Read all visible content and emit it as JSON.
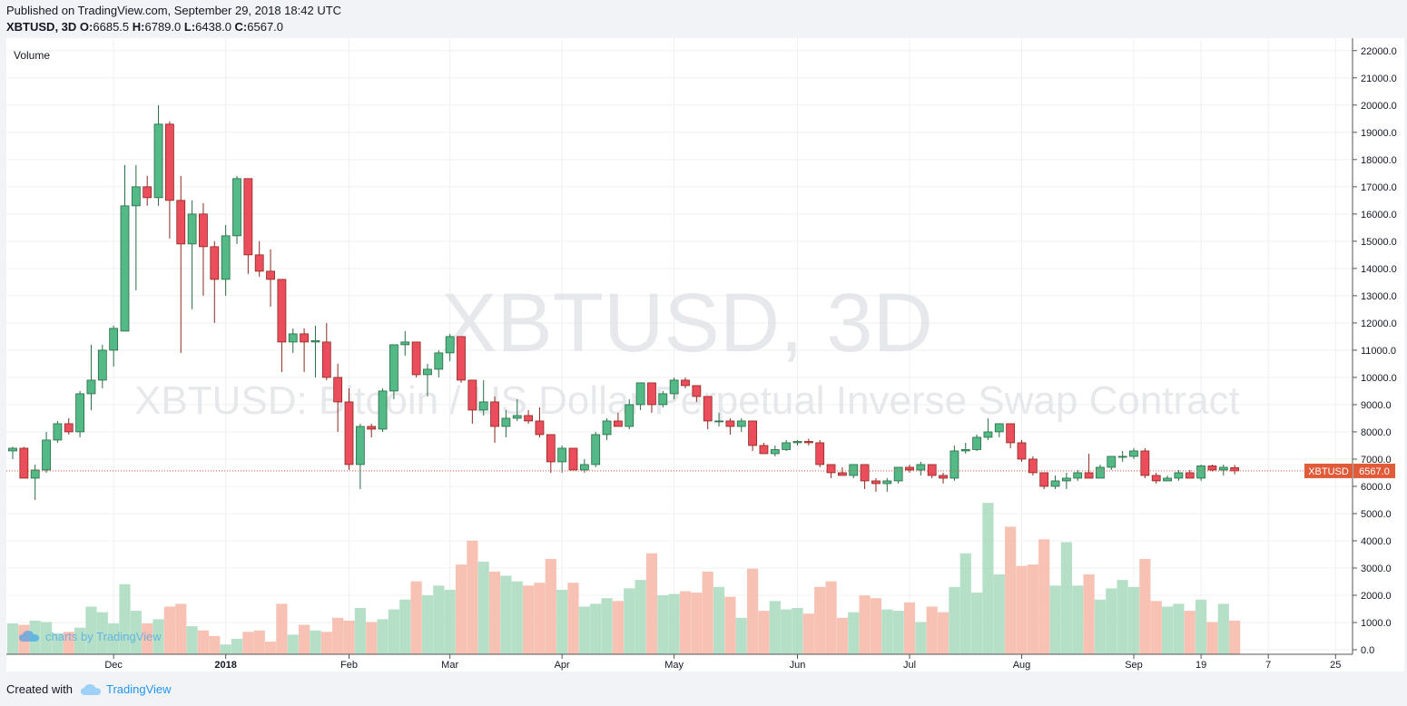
{
  "header": {
    "published": "Published on TradingView.com, September 29, 2018 18:42 UTC",
    "symbol": "XBTUSD, 3D",
    "ohlc": {
      "o_label": "O:",
      "o": "6685.5",
      "h_label": "H:",
      "h": "6789.0",
      "l_label": "L:",
      "l": "6438.0",
      "c_label": "C:",
      "c": "6567.0"
    }
  },
  "footer": {
    "created_with": "Created with",
    "brand": "TradingView"
  },
  "colors": {
    "up": "#53b987",
    "down": "#eb4d5c",
    "up_volume": "#a8d9bd",
    "down_volume": "#f6b7a6",
    "grid": "#eef0f3",
    "last_price": "#e05b3a"
  },
  "chart_data": {
    "type": "candlestick",
    "symbol": "XBTUSD",
    "timeframe": "3D",
    "watermark_symbol": "XBTUSD, 3D",
    "watermark_description": "XBTUSD: Bitcoin / US Dollar Perpetual Inverse Swap Contract",
    "pane_label": "Volume",
    "watermark_brand": "charts by TradingView",
    "last_price": 6567.0,
    "last_price_label": "XBTUSD",
    "last_price_text": "6567.0",
    "ylim": [
      0,
      22300
    ],
    "yticks": [
      0,
      1000,
      2000,
      3000,
      4000,
      5000,
      6000,
      7000,
      8000,
      9000,
      10000,
      11000,
      12000,
      13000,
      14000,
      15000,
      16000,
      17000,
      18000,
      19000,
      20000,
      21000,
      22000
    ],
    "ytick_labels": [
      "0.0",
      "1000.0",
      "2000.0",
      "3000.0",
      "4000.0",
      "5000.0",
      "6000.0",
      "7000.0",
      "8000.0",
      "9000.0",
      "10000.0",
      "11000.0",
      "12000.0",
      "13000.0",
      "14000.0",
      "15000.0",
      "16000.0",
      "17000.0",
      "18000.0",
      "19000.0",
      "20000.0",
      "21000.0",
      "22000.0"
    ],
    "xticks": [
      {
        "label": "Dec",
        "i": 9,
        "bold": false
      },
      {
        "label": "2018",
        "i": 19,
        "bold": true
      },
      {
        "label": "Feb",
        "i": 30,
        "bold": false
      },
      {
        "label": "Mar",
        "i": 39,
        "bold": false
      },
      {
        "label": "Apr",
        "i": 49,
        "bold": false
      },
      {
        "label": "May",
        "i": 59,
        "bold": false
      },
      {
        "label": "Jun",
        "i": 70,
        "bold": false
      },
      {
        "label": "Jul",
        "i": 80,
        "bold": false
      },
      {
        "label": "Aug",
        "i": 90,
        "bold": false
      },
      {
        "label": "Sep",
        "i": 100,
        "bold": false
      },
      {
        "label": "19",
        "i": 106,
        "bold": false
      },
      {
        "label": "7",
        "i": 112,
        "bold": false
      },
      {
        "label": "25",
        "i": 118,
        "bold": false
      }
    ],
    "volume_unit_label": "",
    "candles": [
      {
        "o": 7300,
        "h": 7450,
        "l": 7000,
        "c": 7400,
        "v": 1100
      },
      {
        "o": 7400,
        "h": 7450,
        "l": 6300,
        "c": 6300,
        "v": 1050
      },
      {
        "o": 6300,
        "h": 6800,
        "l": 5500,
        "c": 6600,
        "v": 1200
      },
      {
        "o": 6600,
        "h": 8000,
        "l": 6500,
        "c": 7700,
        "v": 1150
      },
      {
        "o": 7700,
        "h": 8400,
        "l": 7600,
        "c": 8300,
        "v": 750
      },
      {
        "o": 8300,
        "h": 8500,
        "l": 7900,
        "c": 8000,
        "v": 800
      },
      {
        "o": 8000,
        "h": 9500,
        "l": 7800,
        "c": 9400,
        "v": 950
      },
      {
        "o": 9400,
        "h": 11200,
        "l": 8800,
        "c": 9900,
        "v": 1700
      },
      {
        "o": 9900,
        "h": 11200,
        "l": 9600,
        "c": 11000,
        "v": 1500
      },
      {
        "o": 11000,
        "h": 11900,
        "l": 10400,
        "c": 11800,
        "v": 1100
      },
      {
        "o": 11700,
        "h": 17800,
        "l": 11700,
        "c": 16300,
        "v": 2500
      },
      {
        "o": 16300,
        "h": 17800,
        "l": 13200,
        "c": 17000,
        "v": 1550
      },
      {
        "o": 17000,
        "h": 17400,
        "l": 16300,
        "c": 16600,
        "v": 1100
      },
      {
        "o": 16600,
        "h": 20000,
        "l": 16300,
        "c": 19300,
        "v": 1250
      },
      {
        "o": 19300,
        "h": 19400,
        "l": 15100,
        "c": 16500,
        "v": 1700
      },
      {
        "o": 16500,
        "h": 17400,
        "l": 10900,
        "c": 14900,
        "v": 1800
      },
      {
        "o": 14900,
        "h": 16500,
        "l": 12500,
        "c": 16000,
        "v": 1000
      },
      {
        "o": 16000,
        "h": 16400,
        "l": 13000,
        "c": 14800,
        "v": 850
      },
      {
        "o": 14800,
        "h": 15000,
        "l": 12000,
        "c": 13600,
        "v": 650
      },
      {
        "o": 13600,
        "h": 15600,
        "l": 13000,
        "c": 15200,
        "v": 350
      },
      {
        "o": 15200,
        "h": 17400,
        "l": 14900,
        "c": 17300,
        "v": 550
      },
      {
        "o": 17300,
        "h": 17300,
        "l": 13800,
        "c": 14500,
        "v": 800
      },
      {
        "o": 14500,
        "h": 15000,
        "l": 13700,
        "c": 13900,
        "v": 850
      },
      {
        "o": 13900,
        "h": 14700,
        "l": 12600,
        "c": 13600,
        "v": 450
      },
      {
        "o": 13600,
        "h": 13600,
        "l": 10200,
        "c": 11300,
        "v": 1800
      },
      {
        "o": 11300,
        "h": 11800,
        "l": 10900,
        "c": 11600,
        "v": 700
      },
      {
        "o": 11600,
        "h": 11800,
        "l": 10200,
        "c": 11300,
        "v": 1050
      },
      {
        "o": 11300,
        "h": 11900,
        "l": 10000,
        "c": 11350,
        "v": 850
      },
      {
        "o": 11300,
        "h": 12000,
        "l": 9900,
        "c": 10000,
        "v": 800
      },
      {
        "o": 10000,
        "h": 10500,
        "l": 8000,
        "c": 9100,
        "v": 1300
      },
      {
        "o": 9100,
        "h": 9600,
        "l": 6600,
        "c": 6800,
        "v": 1200
      },
      {
        "o": 6800,
        "h": 8300,
        "l": 5900,
        "c": 8200,
        "v": 1650
      },
      {
        "o": 8200,
        "h": 8300,
        "l": 7800,
        "c": 8100,
        "v": 1150
      },
      {
        "o": 8100,
        "h": 9600,
        "l": 8000,
        "c": 9500,
        "v": 1250
      },
      {
        "o": 9500,
        "h": 11200,
        "l": 9200,
        "c": 11200,
        "v": 1600
      },
      {
        "o": 11200,
        "h": 11700,
        "l": 10800,
        "c": 11300,
        "v": 1950
      },
      {
        "o": 11300,
        "h": 11300,
        "l": 10000,
        "c": 10100,
        "v": 2600
      },
      {
        "o": 10100,
        "h": 10500,
        "l": 9300,
        "c": 10300,
        "v": 2100
      },
      {
        "o": 10300,
        "h": 11000,
        "l": 10000,
        "c": 10900,
        "v": 2450
      },
      {
        "o": 10900,
        "h": 11600,
        "l": 10600,
        "c": 11500,
        "v": 2300
      },
      {
        "o": 11500,
        "h": 11500,
        "l": 9800,
        "c": 9900,
        "v": 3200
      },
      {
        "o": 9900,
        "h": 9900,
        "l": 8300,
        "c": 8800,
        "v": 4050
      },
      {
        "o": 8800,
        "h": 9900,
        "l": 8600,
        "c": 9100,
        "v": 3300
      },
      {
        "o": 9100,
        "h": 9300,
        "l": 7600,
        "c": 8200,
        "v": 2950
      },
      {
        "o": 8200,
        "h": 8800,
        "l": 7800,
        "c": 8500,
        "v": 2800
      },
      {
        "o": 8500,
        "h": 9200,
        "l": 8400,
        "c": 8600,
        "v": 2600
      },
      {
        "o": 8600,
        "h": 8800,
        "l": 8300,
        "c": 8400,
        "v": 2450
      },
      {
        "o": 8400,
        "h": 8900,
        "l": 7800,
        "c": 7900,
        "v": 2550
      },
      {
        "o": 7900,
        "h": 7900,
        "l": 6500,
        "c": 6900,
        "v": 3400
      },
      {
        "o": 6900,
        "h": 7500,
        "l": 6500,
        "c": 7400,
        "v": 2300
      },
      {
        "o": 7400,
        "h": 7400,
        "l": 6600,
        "c": 6600,
        "v": 2550
      },
      {
        "o": 6600,
        "h": 7000,
        "l": 6500,
        "c": 6800,
        "v": 1700
      },
      {
        "o": 6800,
        "h": 8000,
        "l": 6700,
        "c": 7900,
        "v": 1800
      },
      {
        "o": 7900,
        "h": 8500,
        "l": 7700,
        "c": 8400,
        "v": 2000
      },
      {
        "o": 8400,
        "h": 8700,
        "l": 8200,
        "c": 8200,
        "v": 1900
      },
      {
        "o": 8200,
        "h": 9200,
        "l": 8100,
        "c": 9000,
        "v": 2350
      },
      {
        "o": 9000,
        "h": 9800,
        "l": 8800,
        "c": 9800,
        "v": 2650
      },
      {
        "o": 9800,
        "h": 9800,
        "l": 8700,
        "c": 9000,
        "v": 3600
      },
      {
        "o": 9000,
        "h": 9500,
        "l": 8900,
        "c": 9400,
        "v": 2100
      },
      {
        "o": 9400,
        "h": 10000,
        "l": 9200,
        "c": 9900,
        "v": 2150
      },
      {
        "o": 9900,
        "h": 10000,
        "l": 9600,
        "c": 9700,
        "v": 2250
      },
      {
        "o": 9700,
        "h": 9700,
        "l": 9100,
        "c": 9300,
        "v": 2200
      },
      {
        "o": 9300,
        "h": 9300,
        "l": 8100,
        "c": 8400,
        "v": 2950
      },
      {
        "o": 8400,
        "h": 8700,
        "l": 8200,
        "c": 8400,
        "v": 2400
      },
      {
        "o": 8400,
        "h": 8500,
        "l": 7900,
        "c": 8200,
        "v": 2050
      },
      {
        "o": 8200,
        "h": 8500,
        "l": 8000,
        "c": 8400,
        "v": 1300
      },
      {
        "o": 8400,
        "h": 8400,
        "l": 7300,
        "c": 7500,
        "v": 3050
      },
      {
        "o": 7500,
        "h": 7600,
        "l": 7200,
        "c": 7200,
        "v": 1550
      },
      {
        "o": 7200,
        "h": 7500,
        "l": 7100,
        "c": 7350,
        "v": 1900
      },
      {
        "o": 7350,
        "h": 7700,
        "l": 7300,
        "c": 7600,
        "v": 1600
      },
      {
        "o": 7600,
        "h": 7700,
        "l": 7500,
        "c": 7650,
        "v": 1650
      },
      {
        "o": 7650,
        "h": 7750,
        "l": 7500,
        "c": 7600,
        "v": 1450
      },
      {
        "o": 7600,
        "h": 7700,
        "l": 6700,
        "c": 6800,
        "v": 2400
      },
      {
        "o": 6800,
        "h": 6800,
        "l": 6300,
        "c": 6500,
        "v": 2600
      },
      {
        "o": 6500,
        "h": 6700,
        "l": 6400,
        "c": 6400,
        "v": 1300
      },
      {
        "o": 6400,
        "h": 6800,
        "l": 6300,
        "c": 6800,
        "v": 1500
      },
      {
        "o": 6800,
        "h": 6800,
        "l": 5900,
        "c": 6200,
        "v": 2100
      },
      {
        "o": 6200,
        "h": 6300,
        "l": 5800,
        "c": 6100,
        "v": 2000
      },
      {
        "o": 6100,
        "h": 6300,
        "l": 5800,
        "c": 6200,
        "v": 1600
      },
      {
        "o": 6200,
        "h": 6700,
        "l": 6100,
        "c": 6700,
        "v": 1550
      },
      {
        "o": 6700,
        "h": 6800,
        "l": 6500,
        "c": 6600,
        "v": 1850
      },
      {
        "o": 6600,
        "h": 6900,
        "l": 6400,
        "c": 6800,
        "v": 1150
      },
      {
        "o": 6800,
        "h": 6800,
        "l": 6300,
        "c": 6400,
        "v": 1700
      },
      {
        "o": 6400,
        "h": 6500,
        "l": 6100,
        "c": 6300,
        "v": 1500
      },
      {
        "o": 6300,
        "h": 7500,
        "l": 6200,
        "c": 7300,
        "v": 2400
      },
      {
        "o": 7300,
        "h": 7600,
        "l": 7200,
        "c": 7350,
        "v": 3600
      },
      {
        "o": 7350,
        "h": 7900,
        "l": 7300,
        "c": 7800,
        "v": 2200
      },
      {
        "o": 7800,
        "h": 8500,
        "l": 7700,
        "c": 8000,
        "v": 5400
      },
      {
        "o": 8000,
        "h": 8300,
        "l": 7800,
        "c": 8300,
        "v": 2850
      },
      {
        "o": 8300,
        "h": 8300,
        "l": 7400,
        "c": 7600,
        "v": 4550
      },
      {
        "o": 7600,
        "h": 7700,
        "l": 6900,
        "c": 7000,
        "v": 3150
      },
      {
        "o": 7000,
        "h": 7100,
        "l": 6400,
        "c": 6500,
        "v": 3200
      },
      {
        "o": 6500,
        "h": 6500,
        "l": 5900,
        "c": 6000,
        "v": 4100
      },
      {
        "o": 6000,
        "h": 6400,
        "l": 5900,
        "c": 6200,
        "v": 2450
      },
      {
        "o": 6200,
        "h": 6500,
        "l": 5900,
        "c": 6300,
        "v": 4000
      },
      {
        "o": 6300,
        "h": 6600,
        "l": 6200,
        "c": 6500,
        "v": 2450
      },
      {
        "o": 6500,
        "h": 7200,
        "l": 6300,
        "c": 6300,
        "v": 2850
      },
      {
        "o": 6300,
        "h": 6800,
        "l": 6300,
        "c": 6700,
        "v": 1950
      },
      {
        "o": 6700,
        "h": 7100,
        "l": 6600,
        "c": 7100,
        "v": 2350
      },
      {
        "o": 7100,
        "h": 7300,
        "l": 6900,
        "c": 7100,
        "v": 2650
      },
      {
        "o": 7100,
        "h": 7400,
        "l": 7000,
        "c": 7300,
        "v": 2400
      },
      {
        "o": 7300,
        "h": 7400,
        "l": 6300,
        "c": 6400,
        "v": 3400
      },
      {
        "o": 6400,
        "h": 6500,
        "l": 6100,
        "c": 6200,
        "v": 1900
      },
      {
        "o": 6200,
        "h": 6400,
        "l": 6200,
        "c": 6300,
        "v": 1700
      },
      {
        "o": 6300,
        "h": 6600,
        "l": 6200,
        "c": 6500,
        "v": 1800
      },
      {
        "o": 6500,
        "h": 6600,
        "l": 6300,
        "c": 6300,
        "v": 1550
      },
      {
        "o": 6300,
        "h": 6800,
        "l": 6200,
        "c": 6750,
        "v": 1950
      },
      {
        "o": 6750,
        "h": 6800,
        "l": 6550,
        "c": 6600,
        "v": 1150
      },
      {
        "o": 6600,
        "h": 6800,
        "l": 6400,
        "c": 6700,
        "v": 1800
      },
      {
        "o": 6685.5,
        "h": 6789,
        "l": 6438,
        "c": 6567,
        "v": 1200
      }
    ]
  }
}
